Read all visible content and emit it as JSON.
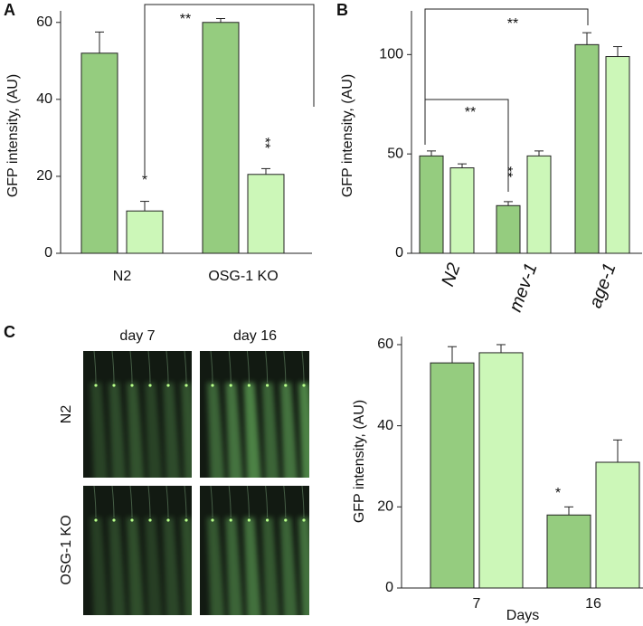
{
  "panel_labels": [
    "A",
    "B",
    "C"
  ],
  "images": {
    "columns": [
      "day 7",
      "day 16"
    ],
    "rows": [
      "N2",
      "OSG-1 KO"
    ]
  },
  "chart_data": [
    {
      "type": "bar",
      "ylabel": "GFP intensity, (AU)",
      "categories": [
        "N2",
        "OSG-1 KO"
      ],
      "series": [
        {
          "color": "#95cc7f",
          "values": [
            52,
            60
          ],
          "errors": [
            5.5,
            1
          ]
        },
        {
          "color": "#ccf7b8",
          "values": [
            11,
            20.5
          ],
          "errors": [
            2.5,
            1.5
          ]
        }
      ],
      "ylim": [
        0,
        63
      ],
      "yticks": [
        0,
        20,
        40,
        60
      ],
      "annotations": [
        "*",
        "**",
        "**"
      ]
    },
    {
      "type": "bar",
      "ylabel": "GFP intensity, (AU)",
      "categories": [
        "N2",
        "mev-1",
        "age-1"
      ],
      "series": [
        {
          "color": "#95cc7f",
          "values": [
            49,
            24,
            105
          ],
          "errors": [
            2.5,
            2,
            6
          ]
        },
        {
          "color": "#ccf7b8",
          "values": [
            43,
            49,
            99
          ],
          "errors": [
            2,
            2.5,
            5
          ]
        }
      ],
      "ylim": [
        0,
        122
      ],
      "yticks": [
        0,
        50,
        100
      ],
      "annotations": [
        "**",
        "**",
        "**"
      ]
    },
    {
      "type": "bar",
      "ylabel": "GFP intensity, (AU)",
      "xlabel": "Days",
      "categories": [
        "7",
        "16"
      ],
      "series": [
        {
          "color": "#95cc7f",
          "values": [
            55.5,
            18
          ],
          "errors": [
            4,
            2
          ]
        },
        {
          "color": "#ccf7b8",
          "values": [
            58,
            31
          ],
          "errors": [
            2,
            5.5
          ]
        }
      ],
      "ylim": [
        0,
        62
      ],
      "yticks": [
        0,
        20,
        40,
        60
      ],
      "annotations": [
        "*"
      ]
    }
  ]
}
